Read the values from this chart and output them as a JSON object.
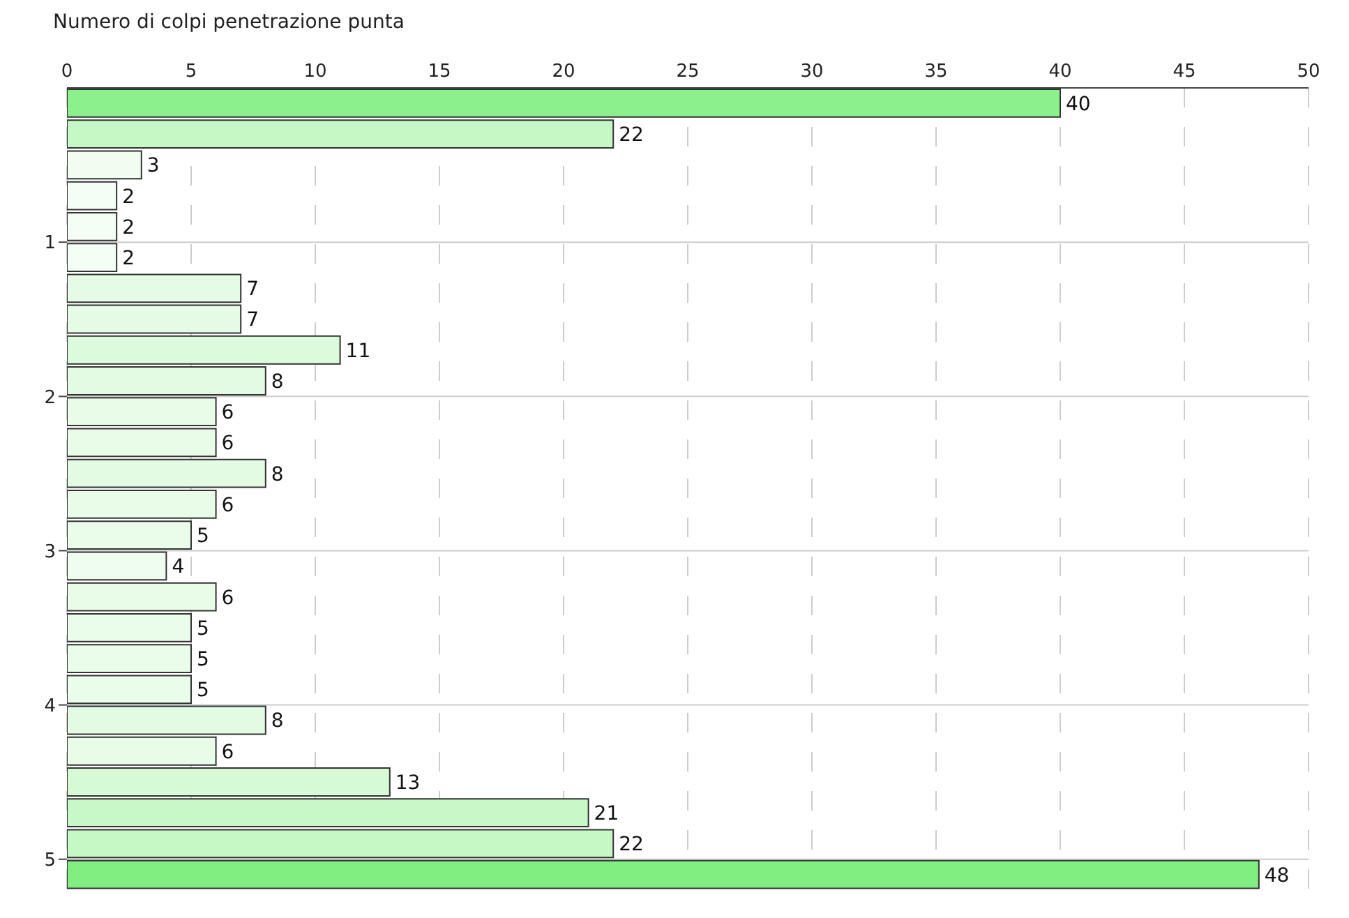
{
  "chart_data": {
    "type": "bar",
    "orientation": "horizontal",
    "xlabel": "Numero di colpi penetrazione punta",
    "x": [
      0.1,
      0.3,
      0.5,
      0.7,
      0.9,
      1.1,
      1.3,
      1.5,
      1.7,
      1.9,
      2.1,
      2.3,
      2.5,
      2.7,
      2.9,
      3.1,
      3.3,
      3.5,
      3.7,
      3.9,
      4.1,
      4.3,
      4.5,
      4.7,
      4.9,
      5.1
    ],
    "values": [
      40,
      22,
      3,
      2,
      2,
      2,
      7,
      7,
      11,
      8,
      6,
      6,
      8,
      6,
      5,
      4,
      6,
      5,
      5,
      5,
      8,
      6,
      13,
      21,
      22,
      48
    ],
    "colors": [
      "#8cf08c",
      "#c6f8c6",
      "#f2fdf2",
      "#f4fef4",
      "#f4fef4",
      "#f4fef4",
      "#e6fbe6",
      "#e6fbe6",
      "#dcfadc",
      "#e2fbe2",
      "#e8fce8",
      "#e8fce8",
      "#e2fbe2",
      "#e8fce8",
      "#eafcea",
      "#eefdee",
      "#e8fce8",
      "#eafcea",
      "#eafcea",
      "#eafcea",
      "#e2fbe2",
      "#e8fce8",
      "#d6f9d6",
      "#c8f8c8",
      "#c6f8c6",
      "#80ee80"
    ],
    "xlim": [
      0,
      50
    ],
    "xticks": [
      0,
      5,
      10,
      15,
      20,
      25,
      30,
      35,
      40,
      45,
      50
    ],
    "ylim": [
      5.2,
      0
    ],
    "yticks": [
      1,
      2,
      3,
      4,
      5
    ],
    "grid": true,
    "data_labels": true
  }
}
